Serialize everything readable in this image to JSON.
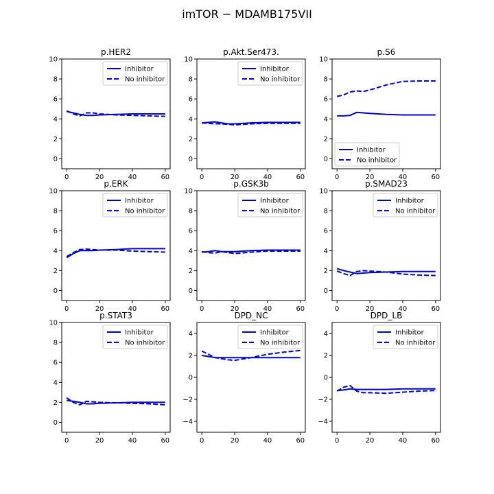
{
  "figure": {
    "title": "imTOR − MDAMB175VII"
  },
  "colors": {
    "series": "#0000cc",
    "axes": "#000000",
    "legend_border": "#cccccc"
  },
  "chart_data": [
    {
      "type": "line",
      "title": "p.HER2",
      "xlim": [
        -3,
        63
      ],
      "ylim": [
        -1,
        10
      ],
      "xticks": [
        0,
        20,
        40,
        60
      ],
      "yticks": [
        0,
        2,
        4,
        6,
        8,
        10
      ],
      "legend": "top-right",
      "series": [
        {
          "name": "Inhibitor",
          "style": "solid",
          "x": [
            0,
            4,
            8,
            12,
            16,
            20,
            30,
            40,
            50,
            60
          ],
          "y": [
            4.75,
            4.6,
            4.45,
            4.35,
            4.35,
            4.4,
            4.45,
            4.5,
            4.5,
            4.5
          ]
        },
        {
          "name": "No inhibitor",
          "style": "dashed",
          "x": [
            0,
            4,
            8,
            12,
            16,
            20,
            30,
            40,
            50,
            60
          ],
          "y": [
            4.8,
            4.5,
            4.3,
            4.6,
            4.6,
            4.5,
            4.4,
            4.35,
            4.3,
            4.25
          ]
        }
      ]
    },
    {
      "type": "line",
      "title": "p.Akt.Ser473.",
      "xlim": [
        -3,
        63
      ],
      "ylim": [
        -1,
        10
      ],
      "xticks": [
        0,
        20,
        40,
        60
      ],
      "yticks": [
        0,
        2,
        4,
        6,
        8,
        10
      ],
      "legend": "top-right",
      "series": [
        {
          "name": "Inhibitor",
          "style": "solid",
          "x": [
            0,
            4,
            8,
            12,
            16,
            20,
            30,
            40,
            50,
            60
          ],
          "y": [
            3.6,
            3.65,
            3.7,
            3.6,
            3.5,
            3.5,
            3.6,
            3.65,
            3.65,
            3.65
          ]
        },
        {
          "name": "No inhibitor",
          "style": "dashed",
          "x": [
            0,
            4,
            8,
            12,
            16,
            20,
            30,
            40,
            50,
            60
          ],
          "y": [
            3.6,
            3.55,
            3.5,
            3.5,
            3.45,
            3.4,
            3.5,
            3.55,
            3.55,
            3.55
          ]
        }
      ]
    },
    {
      "type": "line",
      "title": "p.S6",
      "xlim": [
        -3,
        63
      ],
      "ylim": [
        -1,
        10
      ],
      "xticks": [
        0,
        20,
        40,
        60
      ],
      "yticks": [
        0,
        2,
        4,
        6,
        8,
        10
      ],
      "legend": "lower-left",
      "series": [
        {
          "name": "Inhibitor",
          "style": "solid",
          "x": [
            0,
            4,
            8,
            12,
            16,
            20,
            30,
            40,
            50,
            60
          ],
          "y": [
            4.3,
            4.3,
            4.35,
            4.65,
            4.6,
            4.55,
            4.45,
            4.4,
            4.4,
            4.4
          ]
        },
        {
          "name": "No inhibitor",
          "style": "dashed",
          "x": [
            0,
            4,
            8,
            12,
            16,
            20,
            30,
            40,
            50,
            60
          ],
          "y": [
            6.25,
            6.4,
            6.7,
            6.8,
            6.75,
            6.9,
            7.4,
            7.75,
            7.8,
            7.8
          ]
        }
      ]
    },
    {
      "type": "line",
      "title": "p.ERK",
      "xlim": [
        -3,
        63
      ],
      "ylim": [
        -1,
        10
      ],
      "xticks": [
        0,
        20,
        40,
        60
      ],
      "yticks": [
        0,
        2,
        4,
        6,
        8,
        10
      ],
      "legend": "top-right",
      "series": [
        {
          "name": "Inhibitor",
          "style": "solid",
          "x": [
            0,
            4,
            8,
            12,
            16,
            20,
            30,
            40,
            50,
            60
          ],
          "y": [
            3.3,
            3.7,
            4.0,
            4.0,
            4.0,
            4.05,
            4.1,
            4.2,
            4.2,
            4.2
          ]
        },
        {
          "name": "No inhibitor",
          "style": "dashed",
          "x": [
            0,
            4,
            8,
            12,
            16,
            20,
            30,
            40,
            50,
            60
          ],
          "y": [
            3.4,
            3.8,
            4.1,
            4.15,
            4.1,
            4.05,
            4.05,
            3.95,
            3.9,
            3.85
          ]
        }
      ]
    },
    {
      "type": "line",
      "title": "p.GSK3b",
      "xlim": [
        -3,
        63
      ],
      "ylim": [
        -1,
        10
      ],
      "xticks": [
        0,
        20,
        40,
        60
      ],
      "yticks": [
        0,
        2,
        4,
        6,
        8,
        10
      ],
      "legend": "top-right",
      "series": [
        {
          "name": "Inhibitor",
          "style": "solid",
          "x": [
            0,
            4,
            8,
            12,
            16,
            20,
            30,
            40,
            50,
            60
          ],
          "y": [
            3.85,
            3.9,
            4.0,
            3.9,
            3.9,
            3.9,
            4.0,
            4.05,
            4.05,
            4.05
          ]
        },
        {
          "name": "No inhibitor",
          "style": "dashed",
          "x": [
            0,
            4,
            8,
            12,
            16,
            20,
            30,
            40,
            50,
            60
          ],
          "y": [
            3.9,
            3.8,
            3.75,
            3.9,
            3.8,
            3.7,
            3.85,
            3.95,
            3.95,
            3.95
          ]
        }
      ]
    },
    {
      "type": "line",
      "title": "p.SMAD23",
      "xlim": [
        -3,
        63
      ],
      "ylim": [
        -1,
        10
      ],
      "xticks": [
        0,
        20,
        40,
        60
      ],
      "yticks": [
        0,
        2,
        4,
        6,
        8,
        10
      ],
      "legend": "top-right",
      "series": [
        {
          "name": "Inhibitor",
          "style": "solid",
          "x": [
            0,
            4,
            8,
            12,
            16,
            20,
            30,
            40,
            50,
            60
          ],
          "y": [
            2.2,
            2.0,
            1.85,
            1.7,
            1.75,
            1.8,
            1.85,
            1.9,
            1.9,
            1.9
          ]
        },
        {
          "name": "No inhibitor",
          "style": "dashed",
          "x": [
            0,
            4,
            8,
            12,
            16,
            20,
            30,
            40,
            50,
            60
          ],
          "y": [
            1.95,
            1.7,
            1.5,
            1.9,
            2.0,
            1.95,
            1.85,
            1.65,
            1.55,
            1.5
          ]
        }
      ]
    },
    {
      "type": "line",
      "title": "p.STAT3",
      "xlim": [
        -3,
        63
      ],
      "ylim": [
        -1,
        10
      ],
      "xticks": [
        0,
        20,
        40,
        60
      ],
      "yticks": [
        0,
        2,
        4,
        6,
        8,
        10
      ],
      "legend": "top-right",
      "series": [
        {
          "name": "Inhibitor",
          "style": "solid",
          "x": [
            0,
            4,
            8,
            12,
            16,
            20,
            30,
            40,
            50,
            60
          ],
          "y": [
            2.2,
            2.1,
            2.0,
            1.85,
            1.85,
            1.9,
            1.95,
            2.0,
            2.0,
            2.0
          ]
        },
        {
          "name": "No inhibitor",
          "style": "dashed",
          "x": [
            0,
            4,
            8,
            12,
            16,
            20,
            30,
            40,
            50,
            60
          ],
          "y": [
            2.45,
            2.0,
            1.75,
            2.1,
            2.05,
            2.0,
            1.95,
            1.9,
            1.85,
            1.75
          ]
        }
      ]
    },
    {
      "type": "line",
      "title": "DPD_NC",
      "xlim": [
        -3,
        63
      ],
      "ylim": [
        -5,
        5
      ],
      "xticks": [
        0,
        20,
        40,
        60
      ],
      "yticks": [
        -4,
        -2,
        0,
        2,
        4
      ],
      "legend": "top-right",
      "series": [
        {
          "name": "Inhibitor",
          "style": "solid",
          "x": [
            0,
            4,
            8,
            12,
            16,
            20,
            30,
            40,
            50,
            60
          ],
          "y": [
            2.0,
            1.9,
            1.8,
            1.8,
            1.8,
            1.8,
            1.8,
            1.8,
            1.8,
            1.8
          ]
        },
        {
          "name": "No inhibitor",
          "style": "dashed",
          "x": [
            0,
            4,
            8,
            12,
            16,
            20,
            30,
            40,
            50,
            60
          ],
          "y": [
            2.4,
            2.1,
            1.8,
            1.7,
            1.6,
            1.55,
            1.8,
            2.1,
            2.3,
            2.45
          ]
        }
      ]
    },
    {
      "type": "line",
      "title": "DPD_LB",
      "xlim": [
        -3,
        63
      ],
      "ylim": [
        -5,
        5
      ],
      "xticks": [
        0,
        20,
        40,
        60
      ],
      "yticks": [
        -4,
        -2,
        0,
        2,
        4
      ],
      "legend": "top-right",
      "series": [
        {
          "name": "Inhibitor",
          "style": "solid",
          "x": [
            0,
            4,
            8,
            12,
            16,
            20,
            30,
            40,
            50,
            60
          ],
          "y": [
            -1.2,
            -1.15,
            -1.05,
            -1.1,
            -1.1,
            -1.1,
            -1.1,
            -1.05,
            -1.05,
            -1.05
          ]
        },
        {
          "name": "No inhibitor",
          "style": "dashed",
          "x": [
            0,
            4,
            8,
            12,
            16,
            20,
            30,
            40,
            50,
            60
          ],
          "y": [
            -1.25,
            -0.9,
            -0.75,
            -1.25,
            -1.4,
            -1.4,
            -1.45,
            -1.35,
            -1.25,
            -1.2
          ]
        }
      ]
    }
  ]
}
